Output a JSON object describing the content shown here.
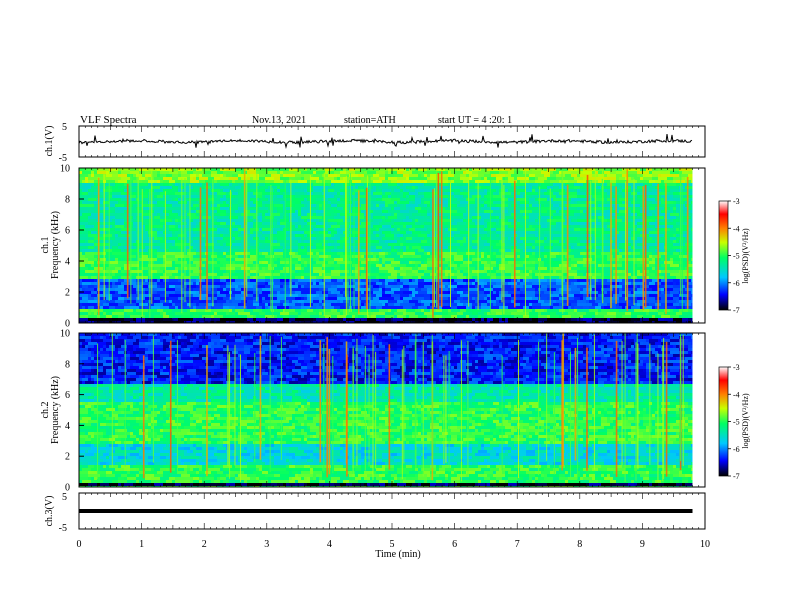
{
  "header": {
    "title": "VLF  Spectra",
    "date": "Nov.13, 2021",
    "station": "station=ATH",
    "start_time": "start  UT  =   4  :20: 1"
  },
  "chart_data": {
    "type": "heatmap",
    "x": {
      "label": "Time  (min)",
      "range": [
        0,
        10
      ],
      "ticks": [
        "0",
        "1",
        "2",
        "3",
        "4",
        "5",
        "6",
        "7",
        "8",
        "9",
        "10"
      ]
    },
    "panels": [
      {
        "kind": "waveform",
        "ylabel": "ch.1(V)",
        "ylim": [
          -5,
          5
        ],
        "yticks": [
          "5",
          "-5"
        ],
        "level": 0,
        "amplitude": "about ±1 V"
      },
      {
        "kind": "spectrogram",
        "ylabel": "ch.1\nFrequency (kHz)",
        "ylim": [
          0,
          10
        ],
        "yticks": [
          "10",
          "8",
          "6",
          "4",
          "2",
          "0"
        ],
        "colorbar": {
          "label": "log(PSD)(V²/Hz)",
          "range": [
            -7,
            -3
          ],
          "ticks": [
            "-3",
            "-4",
            "-5",
            "-6",
            "-7"
          ]
        },
        "bands": [
          {
            "from_khz": 0.0,
            "to_khz": 0.3,
            "log_psd": -6.9
          },
          {
            "from_khz": 0.3,
            "to_khz": 0.9,
            "log_psd": -5.0
          },
          {
            "from_khz": 0.9,
            "to_khz": 2.8,
            "log_psd": -6.2
          },
          {
            "from_khz": 2.8,
            "to_khz": 4.5,
            "log_psd": -5.0
          },
          {
            "from_khz": 4.5,
            "to_khz": 9.0,
            "log_psd": -5.3
          },
          {
            "from_khz": 9.0,
            "to_khz": 10.0,
            "log_psd": -4.7
          }
        ]
      },
      {
        "kind": "spectrogram",
        "ylabel": "ch.2\nFrequency (kHz)",
        "ylim": [
          0,
          10
        ],
        "yticks": [
          "10",
          "8",
          "6",
          "4",
          "2",
          "0"
        ],
        "colorbar": {
          "label": "log(PSD)(V²/Hz)",
          "range": [
            -7,
            -3
          ],
          "ticks": [
            "-3",
            "-4",
            "-5",
            "-6",
            "-7"
          ]
        },
        "bands": [
          {
            "from_khz": 0.0,
            "to_khz": 0.3,
            "log_psd": -6.9
          },
          {
            "from_khz": 0.3,
            "to_khz": 1.5,
            "log_psd": -5.0
          },
          {
            "from_khz": 1.5,
            "to_khz": 2.8,
            "log_psd": -5.6
          },
          {
            "from_khz": 2.8,
            "to_khz": 5.5,
            "log_psd": -5.0
          },
          {
            "from_khz": 5.5,
            "to_khz": 6.7,
            "log_psd": -5.4
          },
          {
            "from_khz": 6.7,
            "to_khz": 10.0,
            "log_psd": -6.4
          }
        ]
      },
      {
        "kind": "waveform",
        "ylabel": "ch.3(V)",
        "ylim": [
          -5,
          5
        ],
        "yticks": [
          "5",
          "-5"
        ],
        "level": -0.8,
        "amplitude": "flat"
      }
    ],
    "data_end_min": 9.8,
    "colormap": [
      "#000000",
      "#0000ff",
      "#00c8ff",
      "#00ff64",
      "#c8ff00",
      "#ff8000",
      "#ff0000",
      "#ffffff"
    ]
  }
}
